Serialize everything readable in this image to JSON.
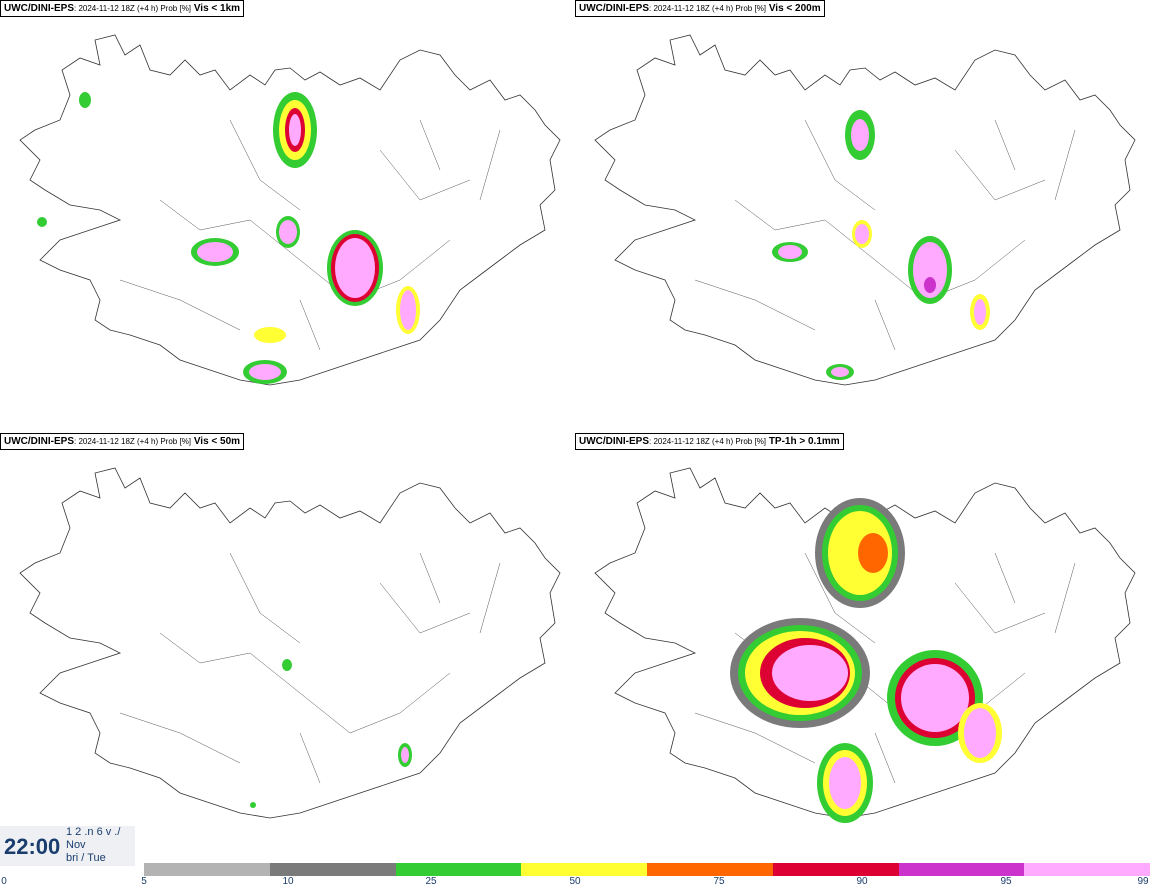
{
  "panels": [
    {
      "model": "UWC/DINI-EPS",
      "meta": ": 2024-11-12 18Z (+4 h) Prob [%]",
      "param": "Vis < 1km"
    },
    {
      "model": "UWC/DINI-EPS",
      "meta": ": 2024-11-12 18Z (+4 h) Prob [%]",
      "param": "Vis < 200m"
    },
    {
      "model": "UWC/DINI-EPS",
      "meta": ": 2024-11-12 18Z (+4 h) Prob [%]",
      "param": "Vis < 50m"
    },
    {
      "model": "UWC/DINI-EPS",
      "meta": ": 2024-11-12 18Z (+4 h) Prob [%]",
      "param": "TP-1h > 0.1mm"
    }
  ],
  "time": {
    "clock": "22:00",
    "line1": "1 2 .n 6 v ./",
    "line2": "Nov",
    "line3": "bri / Tue"
  },
  "legend": {
    "ticks": [
      "0",
      "5",
      "10",
      "25",
      "50",
      "75",
      "90",
      "95",
      "99"
    ],
    "colors": [
      "#b3b3b3",
      "#7a7a7a",
      "#33cc33",
      "#ffff33",
      "#ff6600",
      "#dd0033",
      "#cc33cc",
      "#ffaaff"
    ]
  }
}
